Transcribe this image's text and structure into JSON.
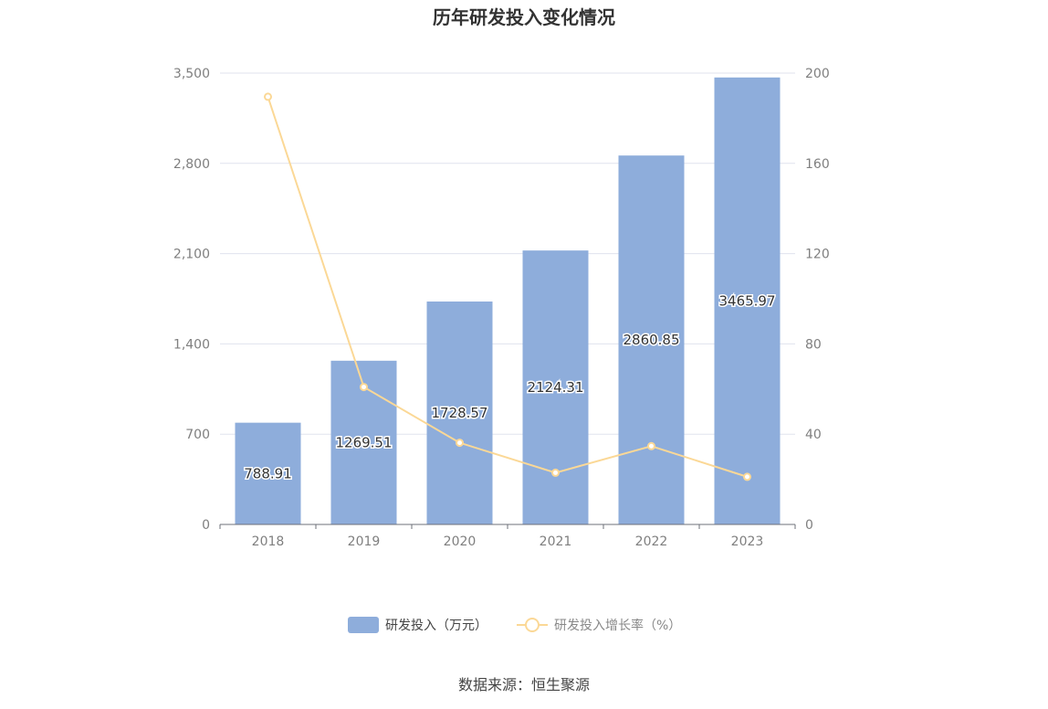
{
  "chart_data": {
    "type": "bar",
    "title": "历年研发投入变化情况",
    "categories": [
      "2018",
      "2019",
      "2020",
      "2021",
      "2022",
      "2023"
    ],
    "series": [
      {
        "name": "研发投入（万元）",
        "type": "bar",
        "axis": "left",
        "color": "#8eaddb",
        "values": [
          788.91,
          1269.51,
          1728.57,
          2124.31,
          2860.85,
          3465.97
        ],
        "labels": [
          "788.91",
          "1269.51",
          "1728.57",
          "2124.31",
          "2860.85",
          "3465.97"
        ]
      },
      {
        "name": "研发投入增长率（%）",
        "type": "line",
        "axis": "right",
        "color": "#fbd896",
        "values": [
          189.5,
          60.9,
          36.2,
          22.9,
          34.7,
          21.1
        ]
      }
    ],
    "y_left": {
      "ylim": [
        0,
        3500
      ],
      "ticks": [
        "0",
        "700",
        "1,400",
        "2,100",
        "2,800",
        "3,500"
      ],
      "tick_values": [
        0,
        700,
        1400,
        2100,
        2800,
        3500
      ]
    },
    "y_right": {
      "ylim": [
        0,
        200
      ],
      "ticks": [
        "0",
        "40",
        "80",
        "120",
        "160",
        "200"
      ],
      "tick_values": [
        0,
        40,
        80,
        120,
        160,
        200
      ]
    },
    "grid": true,
    "legend_position": "bottom-center"
  },
  "source": "数据来源：恒生聚源"
}
